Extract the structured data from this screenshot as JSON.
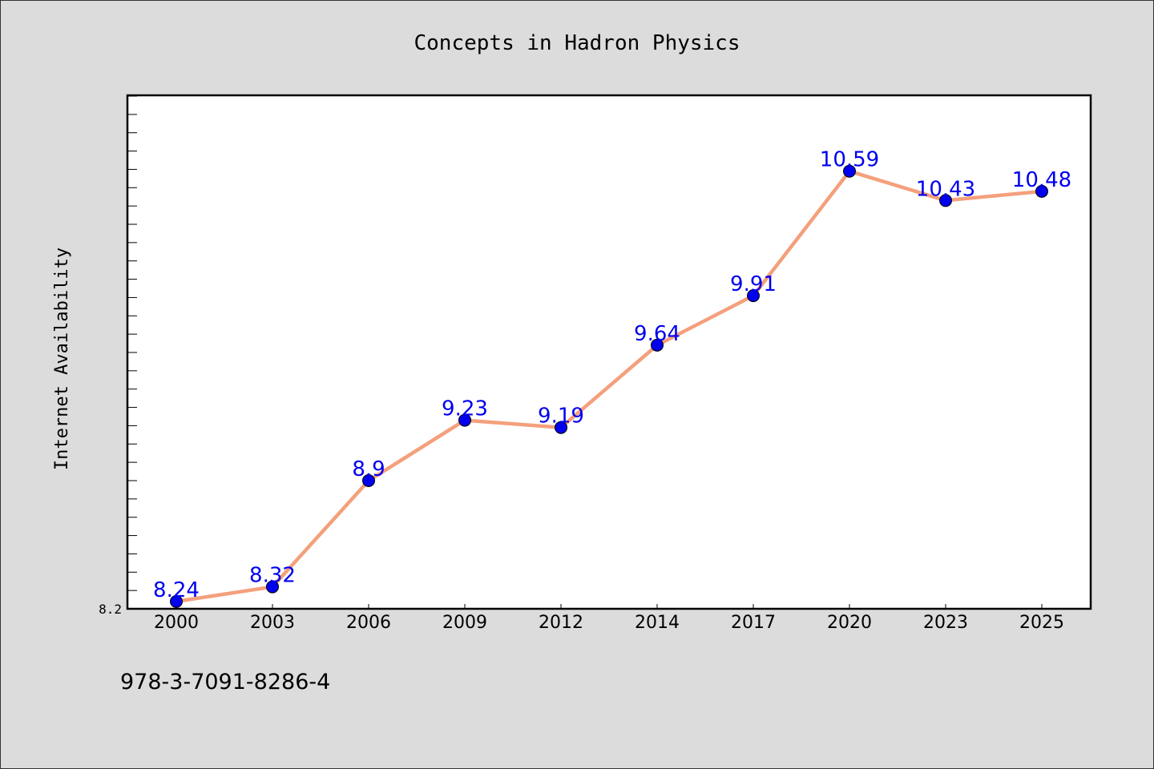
{
  "chart_data": {
    "type": "line",
    "title": "Concepts in Hadron Physics",
    "xlabel": "",
    "ylabel": "Internet Availability",
    "categories": [
      "2000",
      "2003",
      "2006",
      "2009",
      "2012",
      "2014",
      "2017",
      "2020",
      "2023",
      "2025"
    ],
    "series": [
      {
        "values": [
          8.24,
          8.32,
          8.9,
          9.23,
          9.19,
          9.64,
          9.91,
          10.59,
          10.43,
          10.48
        ]
      }
    ],
    "data_labels": [
      "8.24",
      "8.32",
      "8.9",
      "9.23",
      "9.19",
      "9.64",
      "9.91",
      "10.59",
      "10.43",
      "10.48"
    ],
    "y_tick_labels": [
      "8.2"
    ],
    "ylim": [
      8.2,
      11.0
    ],
    "grid": false,
    "colors": {
      "line": "#f4a07c",
      "marker": "#0000ee",
      "data_label": "#0000ee"
    }
  },
  "footer": {
    "isbn": "978-3-7091-8286-4"
  }
}
